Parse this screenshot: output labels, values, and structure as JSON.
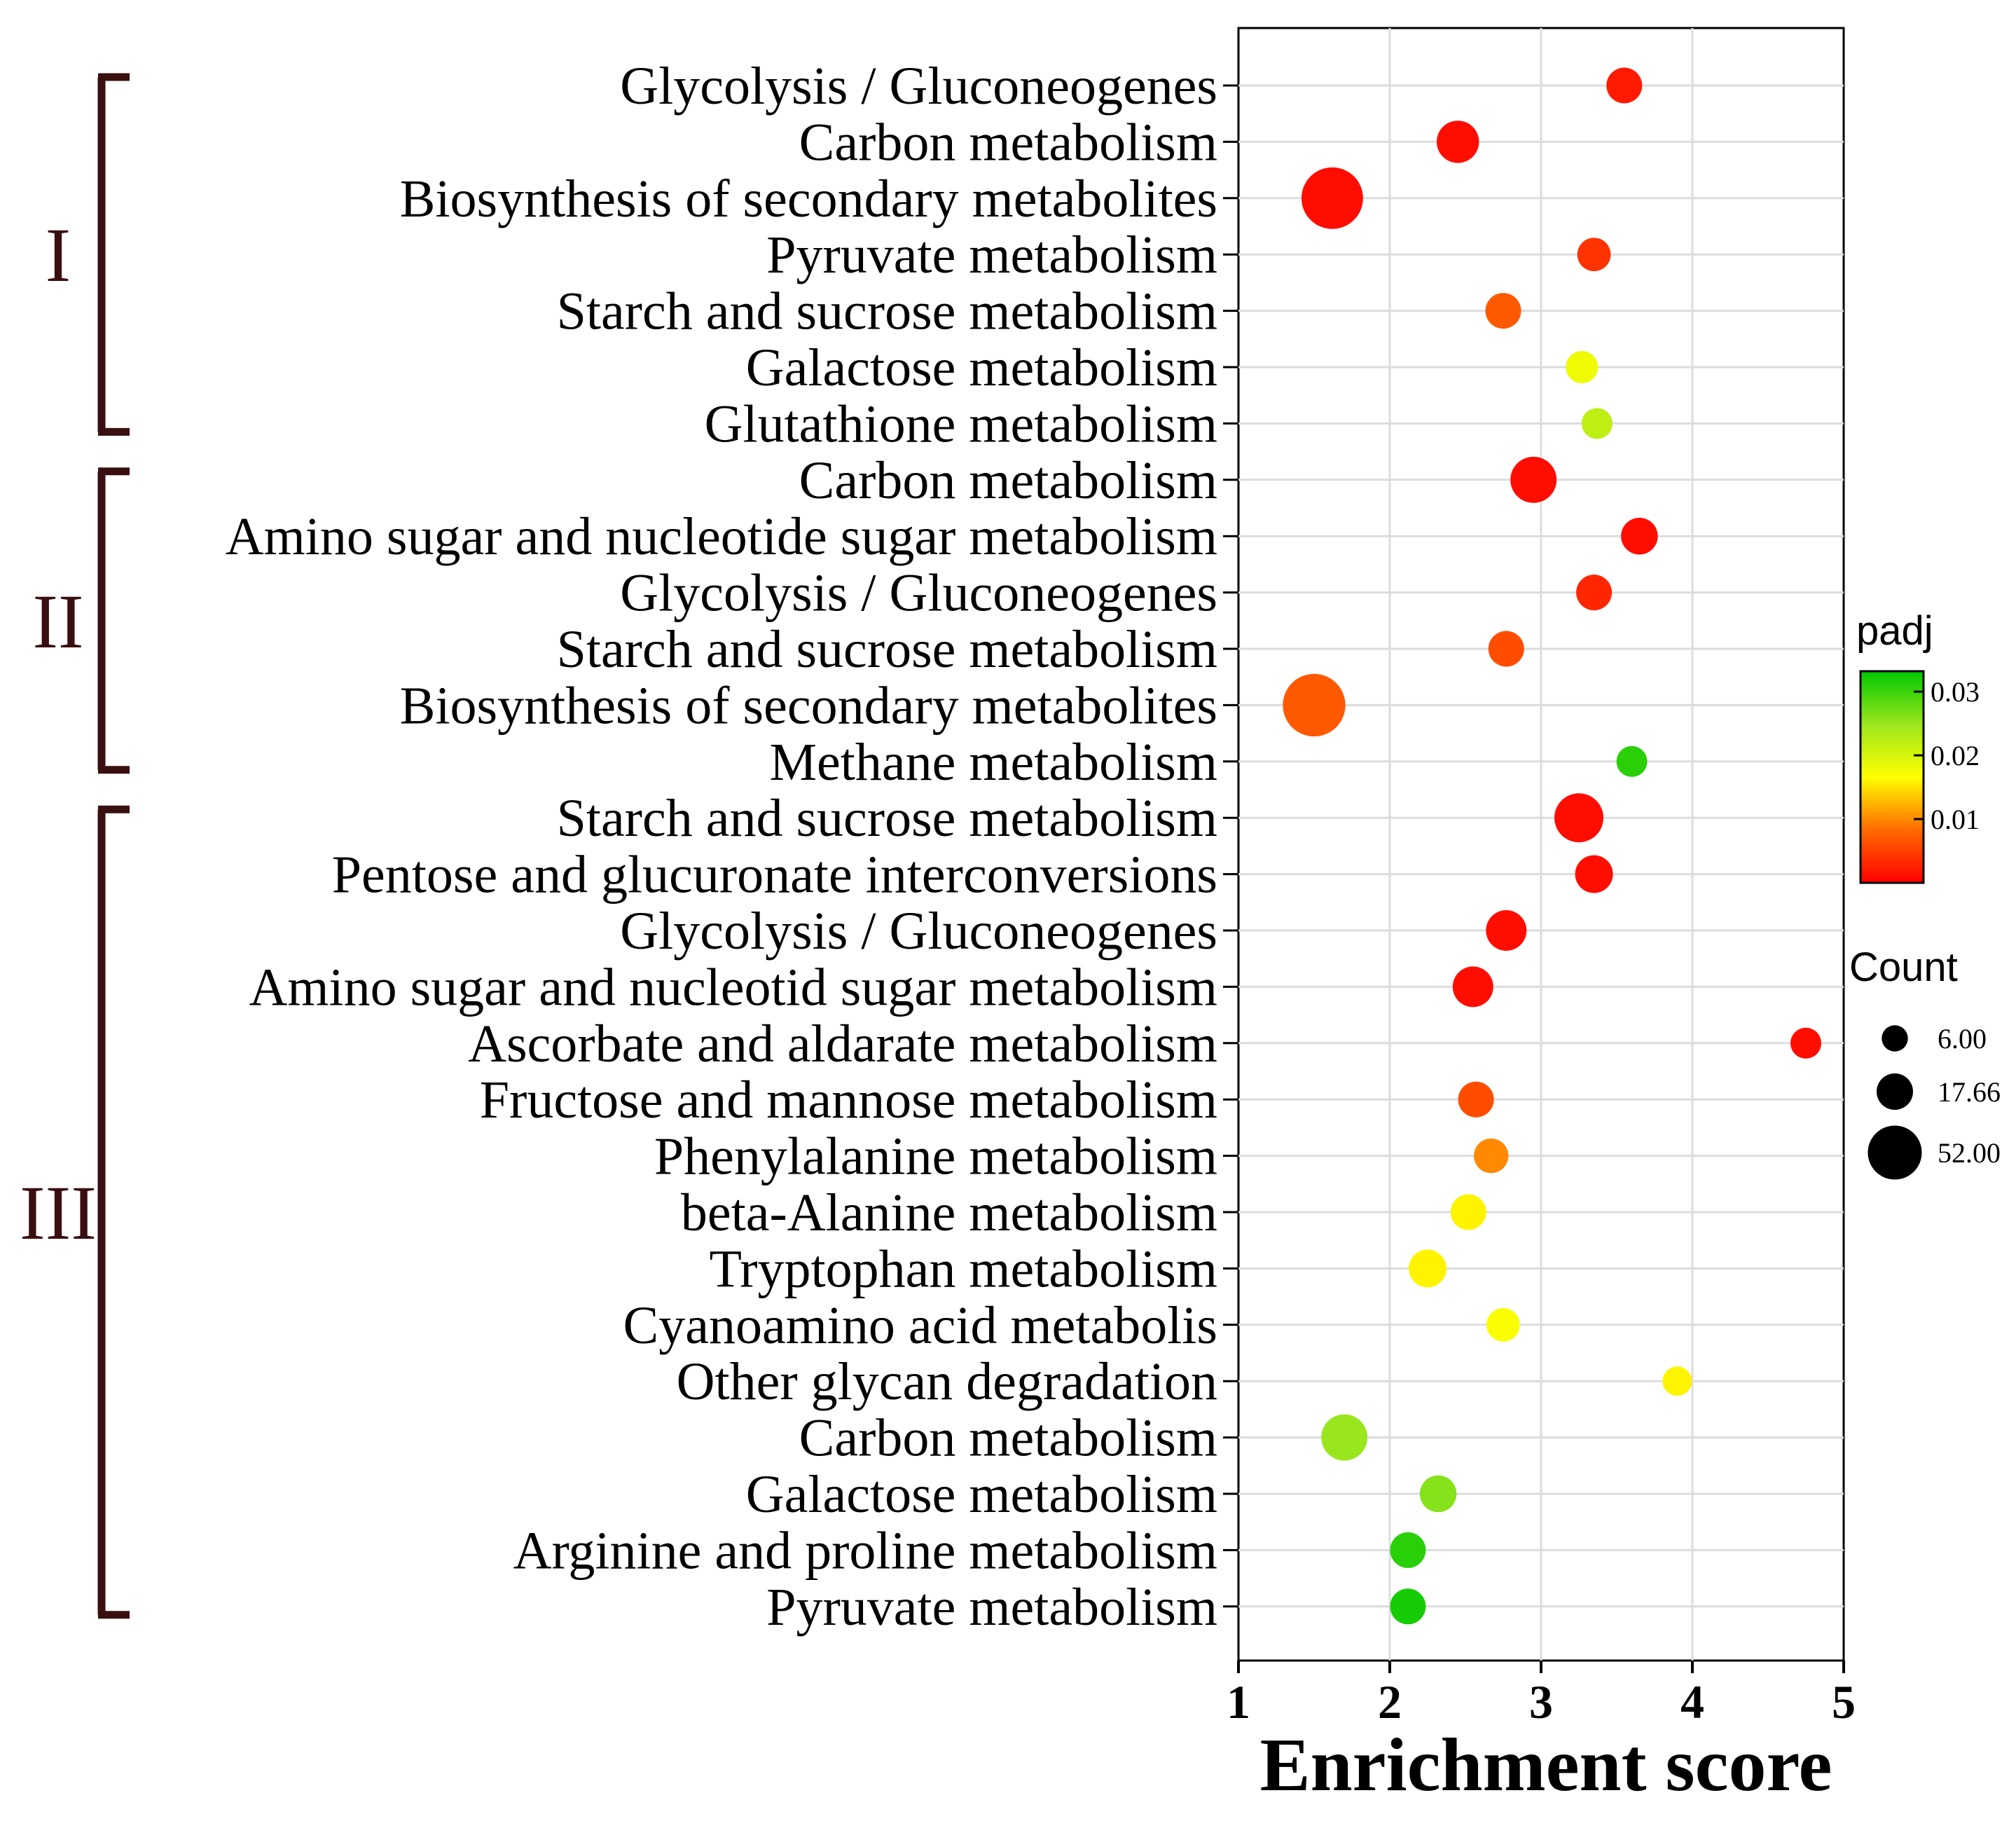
{
  "chart_data": {
    "type": "scatter",
    "xlabel": "Enrichment score",
    "ylabel": "",
    "xlim": [
      1,
      5
    ],
    "xticks": [
      1,
      2,
      3,
      4,
      5
    ],
    "grid": true,
    "groups": [
      {
        "label": "I",
        "start": 0,
        "end": 6
      },
      {
        "label": "II",
        "start": 7,
        "end": 12
      },
      {
        "label": "III",
        "start": 13,
        "end": 27
      }
    ],
    "points": [
      {
        "term": "Glycolysis / Gluconeogenes",
        "x": 3.55,
        "padj": 0.002,
        "count": 10
      },
      {
        "term": "Carbon metabolism",
        "x": 2.45,
        "padj": 0.001,
        "count": 17
      },
      {
        "term": "Biosynthesis of secondary metabolites",
        "x": 1.62,
        "padj": 0.001,
        "count": 48
      },
      {
        "term": "Pyruvate metabolism",
        "x": 3.35,
        "padj": 0.004,
        "count": 8
      },
      {
        "term": "Starch and sucrose metabolism",
        "x": 2.75,
        "padj": 0.007,
        "count": 10
      },
      {
        "term": "Galactose metabolism",
        "x": 3.27,
        "padj": 0.018,
        "count": 7
      },
      {
        "term": "Glutathione metabolism",
        "x": 3.37,
        "padj": 0.022,
        "count": 6
      },
      {
        "term": "Carbon metabolism",
        "x": 2.95,
        "padj": 0.001,
        "count": 22
      },
      {
        "term": "Amino sugar and nucleotide sugar metabolism",
        "x": 3.65,
        "padj": 0.001,
        "count": 11
      },
      {
        "term": "Glycolysis / Gluconeogenes",
        "x": 3.35,
        "padj": 0.003,
        "count": 10
      },
      {
        "term": "Starch and sucrose metabolism",
        "x": 2.77,
        "padj": 0.006,
        "count": 10
      },
      {
        "term": "Biosynthesis of secondary metabolites",
        "x": 1.5,
        "padj": 0.007,
        "count": 50
      },
      {
        "term": "Methane metabolism",
        "x": 3.6,
        "padj": 0.031,
        "count": 6
      },
      {
        "term": "Starch and sucrose metabolism",
        "x": 3.25,
        "padj": 0.001,
        "count": 26
      },
      {
        "term": "Pentose and glucuronate interconversions",
        "x": 3.35,
        "padj": 0.001,
        "count": 12
      },
      {
        "term": "Glycolysis / Gluconeogenes",
        "x": 2.77,
        "padj": 0.001,
        "count": 15
      },
      {
        "term": "Amino sugar and nucleotid sugar metabolism",
        "x": 2.55,
        "padj": 0.001,
        "count": 15
      },
      {
        "term": "Ascorbate and aldarate metabolism",
        "x": 4.75,
        "padj": 0.001,
        "count": 6
      },
      {
        "term": "Fructose and mannose metabolism",
        "x": 2.57,
        "padj": 0.006,
        "count": 10
      },
      {
        "term": "Phenylalanine metabolism",
        "x": 2.67,
        "padj": 0.01,
        "count": 9
      },
      {
        "term": "beta-Alanine metabolism",
        "x": 2.52,
        "padj": 0.016,
        "count": 10
      },
      {
        "term": "Tryptophan metabolism",
        "x": 2.25,
        "padj": 0.016,
        "count": 12
      },
      {
        "term": "Cyanoamino acid metabolis",
        "x": 2.75,
        "padj": 0.017,
        "count": 8
      },
      {
        "term": "Other glycan degradation",
        "x": 3.9,
        "padj": 0.016,
        "count": 5
      },
      {
        "term": "Carbon metabolism",
        "x": 1.7,
        "padj": 0.025,
        "count": 22
      },
      {
        "term": "Galactose metabolism",
        "x": 2.32,
        "padj": 0.026,
        "count": 11
      },
      {
        "term": "Arginine and proline metabolism",
        "x": 2.12,
        "padj": 0.031,
        "count": 10
      },
      {
        "term": "Pyruvate metabolism",
        "x": 2.12,
        "padj": 0.032,
        "count": 10
      }
    ],
    "color_legend": {
      "title": "padj",
      "ticks": [
        "0.03",
        "0.02",
        "0.01"
      ],
      "tick_values": [
        0.03,
        0.02,
        0.01
      ],
      "range": [
        0,
        0.0332
      ],
      "colors": [
        "#ff0000",
        "#ff6a00",
        "#ffff00",
        "#9be61e",
        "#00c800"
      ]
    },
    "size_legend": {
      "title": "Count",
      "entries": [
        {
          "label": "6.00",
          "value": 6
        },
        {
          "label": "17.66",
          "value": 17.66
        },
        {
          "label": "52.00",
          "value": 52
        }
      ]
    }
  }
}
